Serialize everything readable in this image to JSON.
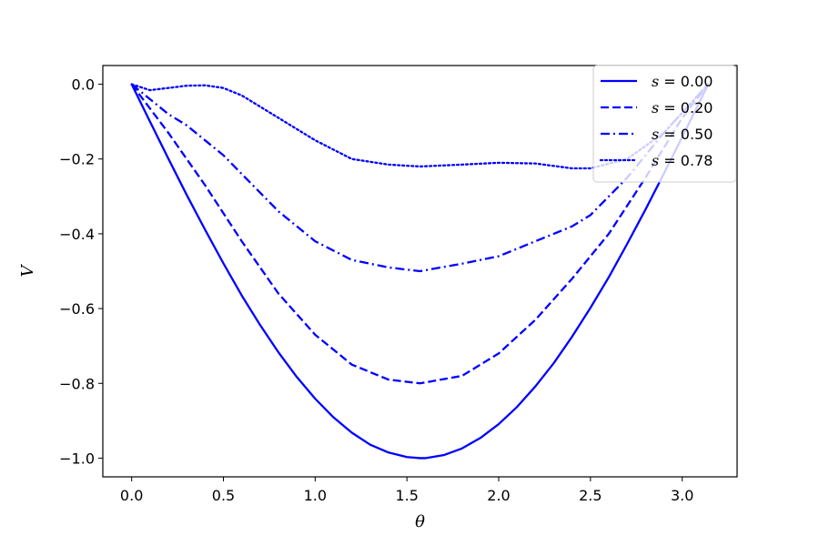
{
  "chart_data": {
    "type": "line",
    "title": "",
    "xlabel": "θ",
    "ylabel": "V",
    "xlim": [
      -0.157,
      3.299
    ],
    "ylim": [
      -1.05,
      0.05
    ],
    "xticks": [
      0.0,
      0.5,
      1.0,
      1.5,
      2.0,
      2.5,
      3.0
    ],
    "xtick_labels": [
      "0.0",
      "0.5",
      "1.0",
      "1.5",
      "2.0",
      "2.5",
      "3.0"
    ],
    "yticks": [
      0.0,
      -0.2,
      -0.4,
      -0.6,
      -0.8,
      -1.0
    ],
    "ytick_labels": [
      "0.0",
      "−0.2",
      "−0.4",
      "−0.6",
      "−0.8",
      "−1.0"
    ],
    "grid": false,
    "legend_position": "top-right",
    "line_color": "#0000ff",
    "series": [
      {
        "name": "s = 0.00",
        "legend_var": "s",
        "legend_value": "0.00",
        "dash": "solid",
        "x": [
          0.0,
          0.1,
          0.2,
          0.3,
          0.4,
          0.5,
          0.6,
          0.7,
          0.8,
          0.9,
          1.0,
          1.1,
          1.2,
          1.3,
          1.4,
          1.5,
          1.571,
          1.6,
          1.7,
          1.8,
          1.9,
          2.0,
          2.1,
          2.2,
          2.3,
          2.4,
          2.5,
          2.6,
          2.7,
          2.8,
          2.9,
          3.0,
          3.1,
          3.1416
        ],
        "y": [
          0.0,
          -0.1,
          -0.199,
          -0.296,
          -0.389,
          -0.479,
          -0.565,
          -0.644,
          -0.717,
          -0.783,
          -0.841,
          -0.891,
          -0.932,
          -0.964,
          -0.985,
          -0.997,
          -1.0,
          -1.0,
          -0.992,
          -0.974,
          -0.946,
          -0.909,
          -0.863,
          -0.808,
          -0.746,
          -0.675,
          -0.598,
          -0.516,
          -0.427,
          -0.335,
          -0.239,
          -0.141,
          -0.042,
          0.0
        ]
      },
      {
        "name": "s = 0.20",
        "legend_var": "s",
        "legend_value": "0.20",
        "dash": "dashed",
        "x": [
          0.0,
          0.2,
          0.4,
          0.6,
          0.8,
          1.0,
          1.2,
          1.4,
          1.571,
          1.8,
          2.0,
          2.2,
          2.4,
          2.6,
          2.8,
          3.0,
          3.1416
        ],
        "y": [
          0.0,
          -0.13,
          -0.27,
          -0.42,
          -0.56,
          -0.67,
          -0.75,
          -0.79,
          -0.8,
          -0.78,
          -0.72,
          -0.63,
          -0.52,
          -0.4,
          -0.25,
          -0.09,
          0.0
        ]
      },
      {
        "name": "s = 0.50",
        "legend_var": "s",
        "legend_value": "0.50",
        "dash": "dashdot",
        "x": [
          0.0,
          0.1,
          0.2,
          0.3,
          0.4,
          0.5,
          0.6,
          0.8,
          1.0,
          1.2,
          1.4,
          1.571,
          1.8,
          2.0,
          2.2,
          2.4,
          2.5,
          2.7,
          2.9,
          3.1416
        ],
        "y": [
          0.0,
          -0.04,
          -0.08,
          -0.11,
          -0.15,
          -0.19,
          -0.24,
          -0.34,
          -0.42,
          -0.47,
          -0.49,
          -0.5,
          -0.48,
          -0.46,
          -0.42,
          -0.38,
          -0.35,
          -0.25,
          -0.13,
          0.0
        ]
      },
      {
        "name": "s = 0.78",
        "legend_var": "s",
        "legend_value": "0.78",
        "dash": "dotted",
        "x": [
          0.0,
          0.1,
          0.2,
          0.3,
          0.4,
          0.5,
          0.6,
          0.8,
          1.0,
          1.2,
          1.4,
          1.571,
          1.8,
          2.0,
          2.2,
          2.4,
          2.5,
          2.7,
          2.9,
          3.1416
        ],
        "y": [
          0.0,
          -0.016,
          -0.01,
          -0.004,
          -0.003,
          -0.01,
          -0.03,
          -0.09,
          -0.15,
          -0.2,
          -0.215,
          -0.22,
          -0.215,
          -0.21,
          -0.212,
          -0.225,
          -0.225,
          -0.2,
          -0.13,
          0.0
        ]
      }
    ]
  }
}
